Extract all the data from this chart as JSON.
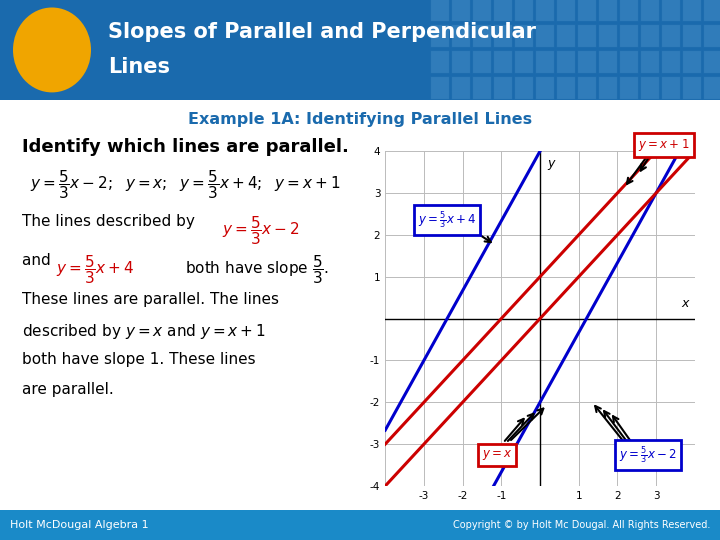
{
  "title_line1": "Slopes of Parallel and Perpendicular",
  "title_line2": "Lines",
  "title_bg": "#1a6aad",
  "title_fg": "#ffffff",
  "tile_bg": "#4a90c8",
  "ellipse_color": "#f0a500",
  "subtitle": "Example 1A: Identifying Parallel Lines",
  "subtitle_color": "#1a6aad",
  "body_bg": "#f0f0f0",
  "footer_bg": "#1a8ac8",
  "footer_left": "Holt McDougal Algebra 1",
  "footer_right": "Copyright © by Holt Mc Dougal. All Rights Reserved.",
  "red": "#cc0000",
  "blue": "#0000cc",
  "black": "#000000",
  "graph_xlim": [
    -4,
    4
  ],
  "graph_ylim": [
    -4,
    4
  ],
  "grid_color": "#bbbbbb"
}
